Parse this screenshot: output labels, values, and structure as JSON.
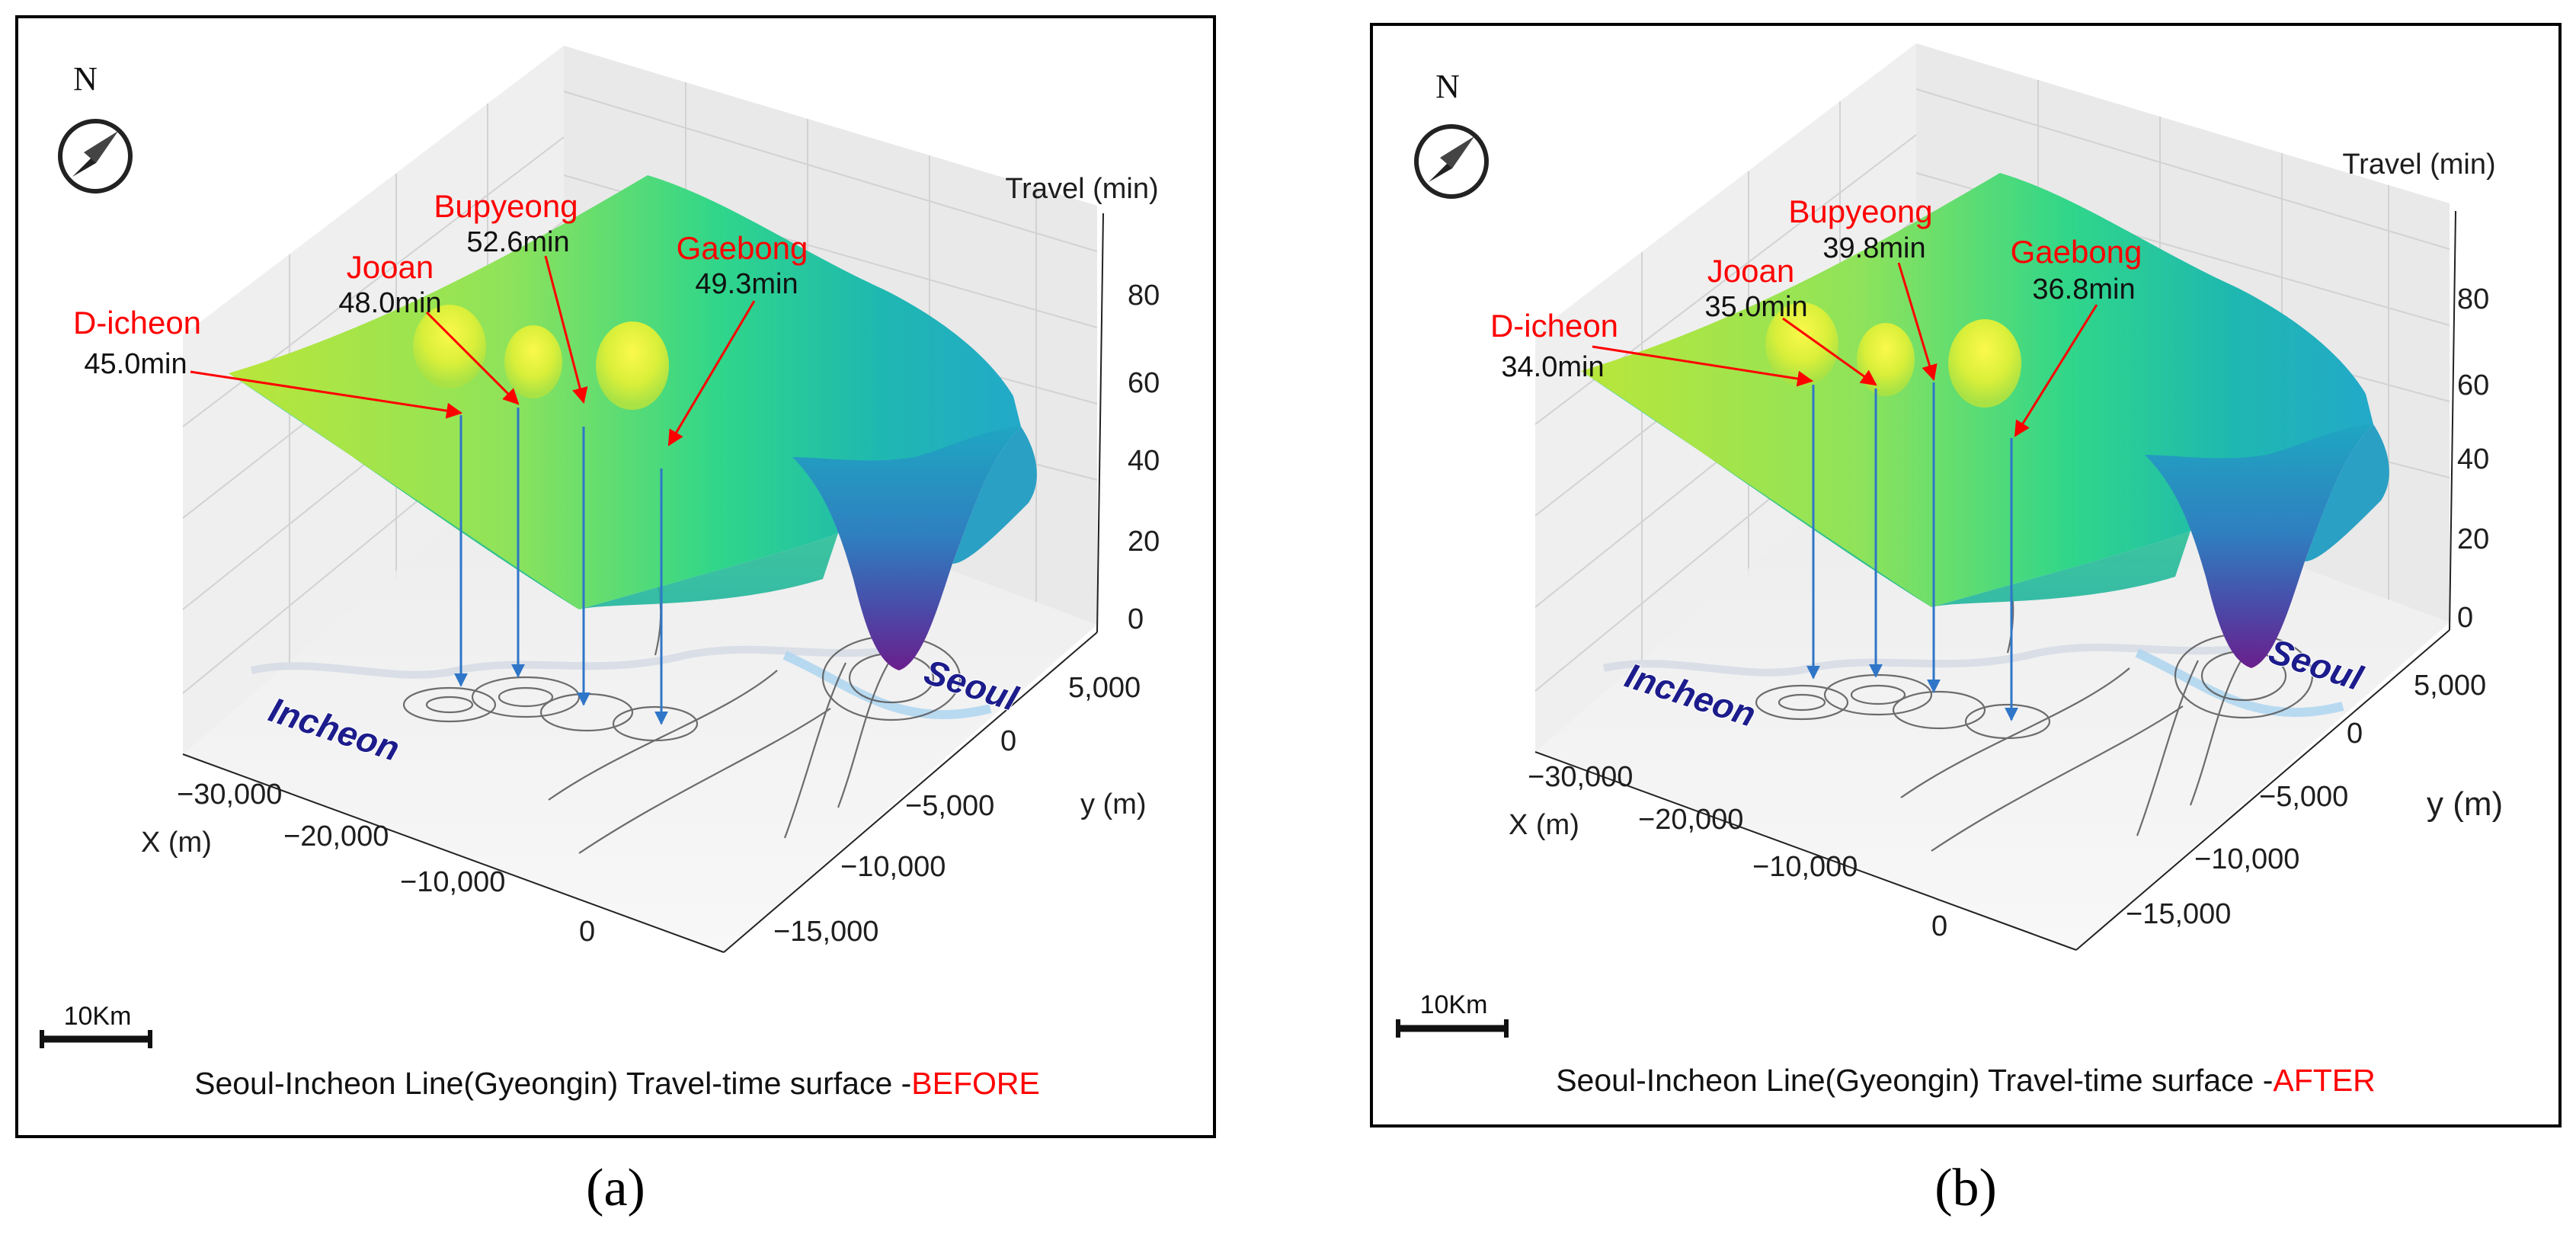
{
  "figure": {
    "panels": [
      {
        "letter": "(a)",
        "caption_main": "Seoul-Incheon Line(Gyeongin) Travel-time surface -",
        "caption_tag": "BEFORE",
        "north_label": "N",
        "scale_label": "10Km",
        "city_west": "Incheon",
        "city_east": "Seoul",
        "z_axis_label": "Travel (min)",
        "x_axis_label": "X (m)",
        "y_axis_label": "y (m)",
        "z_ticks": [
          "80",
          "60",
          "40",
          "20",
          "0"
        ],
        "x_ticks": [
          "−30,000",
          "−20,000",
          "−10,000",
          "0"
        ],
        "y_ticks": [
          "5,000",
          "0",
          "−5,000",
          "−10,000",
          "−15,000"
        ],
        "stations": [
          {
            "name": "D-icheon",
            "value": "45.0min"
          },
          {
            "name": "Jooan",
            "value": "48.0min"
          },
          {
            "name": "Bupyeong",
            "value": "52.6min"
          },
          {
            "name": "Gaebong",
            "value": "49.3min"
          }
        ]
      },
      {
        "letter": "(b)",
        "caption_main": "Seoul-Incheon Line(Gyeongin) Travel-time surface -",
        "caption_tag": "AFTER",
        "north_label": "N",
        "scale_label": "10Km",
        "city_west": "Incheon",
        "city_east": "Seoul",
        "z_axis_label": "Travel (min)",
        "x_axis_label": "X (m)",
        "y_axis_label": "y (m)",
        "z_ticks": [
          "80",
          "60",
          "40",
          "20",
          "0"
        ],
        "x_ticks": [
          "−30,000",
          "−20,000",
          "−10,000",
          "0"
        ],
        "y_ticks": [
          "5,000",
          "0",
          "−5,000",
          "−10,000",
          "−15,000"
        ],
        "stations": [
          {
            "name": "D-icheon",
            "value": "34.0min"
          },
          {
            "name": "Jooan",
            "value": "35.0min"
          },
          {
            "name": "Bupyeong",
            "value": "39.8min"
          },
          {
            "name": "Gaebong",
            "value": "36.8min"
          }
        ]
      }
    ]
  },
  "chart_data": [
    {
      "type": "surface",
      "title": "Seoul-Incheon Line(Gyeongin) Travel-time surface -BEFORE",
      "xlabel": "X (m)",
      "ylabel": "y (m)",
      "zlabel": "Travel (min)",
      "xlim": [
        -35000,
        5000
      ],
      "ylim": [
        -17000,
        7000
      ],
      "zlim": [
        0,
        90
      ],
      "z_ticks": [
        0,
        20,
        40,
        60,
        80
      ],
      "x_ticks": [
        -30000,
        -20000,
        -10000,
        0
      ],
      "y_ticks": [
        5000,
        0,
        -5000,
        -10000,
        -15000
      ],
      "stations": [
        {
          "name": "D-icheon",
          "travel_min": 45.0
        },
        {
          "name": "Jooan",
          "travel_min": 48.0
        },
        {
          "name": "Bupyeong",
          "travel_min": 52.6
        },
        {
          "name": "Gaebong",
          "travel_min": 49.3
        }
      ]
    },
    {
      "type": "surface",
      "title": "Seoul-Incheon Line(Gyeongin) Travel-time surface -AFTER",
      "xlabel": "X (m)",
      "ylabel": "y (m)",
      "zlabel": "Travel (min)",
      "xlim": [
        -35000,
        5000
      ],
      "ylim": [
        -17000,
        7000
      ],
      "zlim": [
        0,
        90
      ],
      "z_ticks": [
        0,
        20,
        40,
        60,
        80
      ],
      "x_ticks": [
        -30000,
        -20000,
        -10000,
        0
      ],
      "y_ticks": [
        5000,
        0,
        -5000,
        -10000,
        -15000
      ],
      "stations": [
        {
          "name": "D-icheon",
          "travel_min": 34.0
        },
        {
          "name": "Jooan",
          "travel_min": 35.0
        },
        {
          "name": "Bupyeong",
          "travel_min": 39.8
        },
        {
          "name": "Gaebong",
          "travel_min": 36.8
        }
      ]
    }
  ]
}
